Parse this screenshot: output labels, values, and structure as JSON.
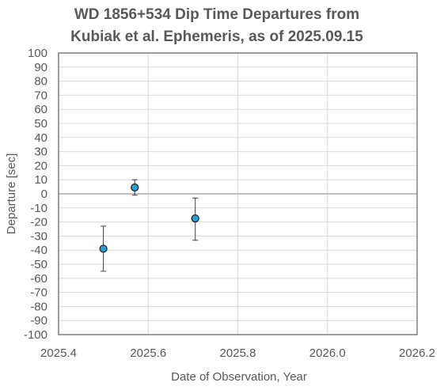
{
  "chart_data": {
    "type": "scatter",
    "title_lines": [
      "WD 1856+534 Dip Time Departures from",
      "Kubiak et al. Ephemeris, as of 2025.09.15"
    ],
    "xlabel": "Date of Observation, Year",
    "ylabel": "Departure [sec]",
    "xlim": [
      2025.4,
      2026.2
    ],
    "ylim": [
      -100,
      100
    ],
    "x_ticks": [
      "2025.4",
      "2025.6",
      "2025.8",
      "2026.0",
      "2026.2"
    ],
    "y_ticks": [
      "100",
      "90",
      "80",
      "70",
      "60",
      "50",
      "40",
      "30",
      "20",
      "10",
      "0",
      "-10",
      "-20",
      "-30",
      "-40",
      "-50",
      "-60",
      "-70",
      "-80",
      "-90",
      "-100"
    ],
    "grid": true,
    "legend": "none",
    "points": [
      {
        "x": 2025.5,
        "y": -39,
        "err_low": -55,
        "err_high": -23
      },
      {
        "x": 2025.57,
        "y": 4.5,
        "err_low": -1,
        "err_high": 10
      },
      {
        "x": 2025.705,
        "y": -17.5,
        "err_low": -33,
        "err_high": -3
      }
    ],
    "colors": {
      "marker_fill": "#1fa3d8",
      "marker_edge": "#1a1a1a",
      "grid": "#d9d9d9",
      "zero_line": "#bfbfbf",
      "frame": "#7f7f7f",
      "text": "#595959"
    }
  }
}
